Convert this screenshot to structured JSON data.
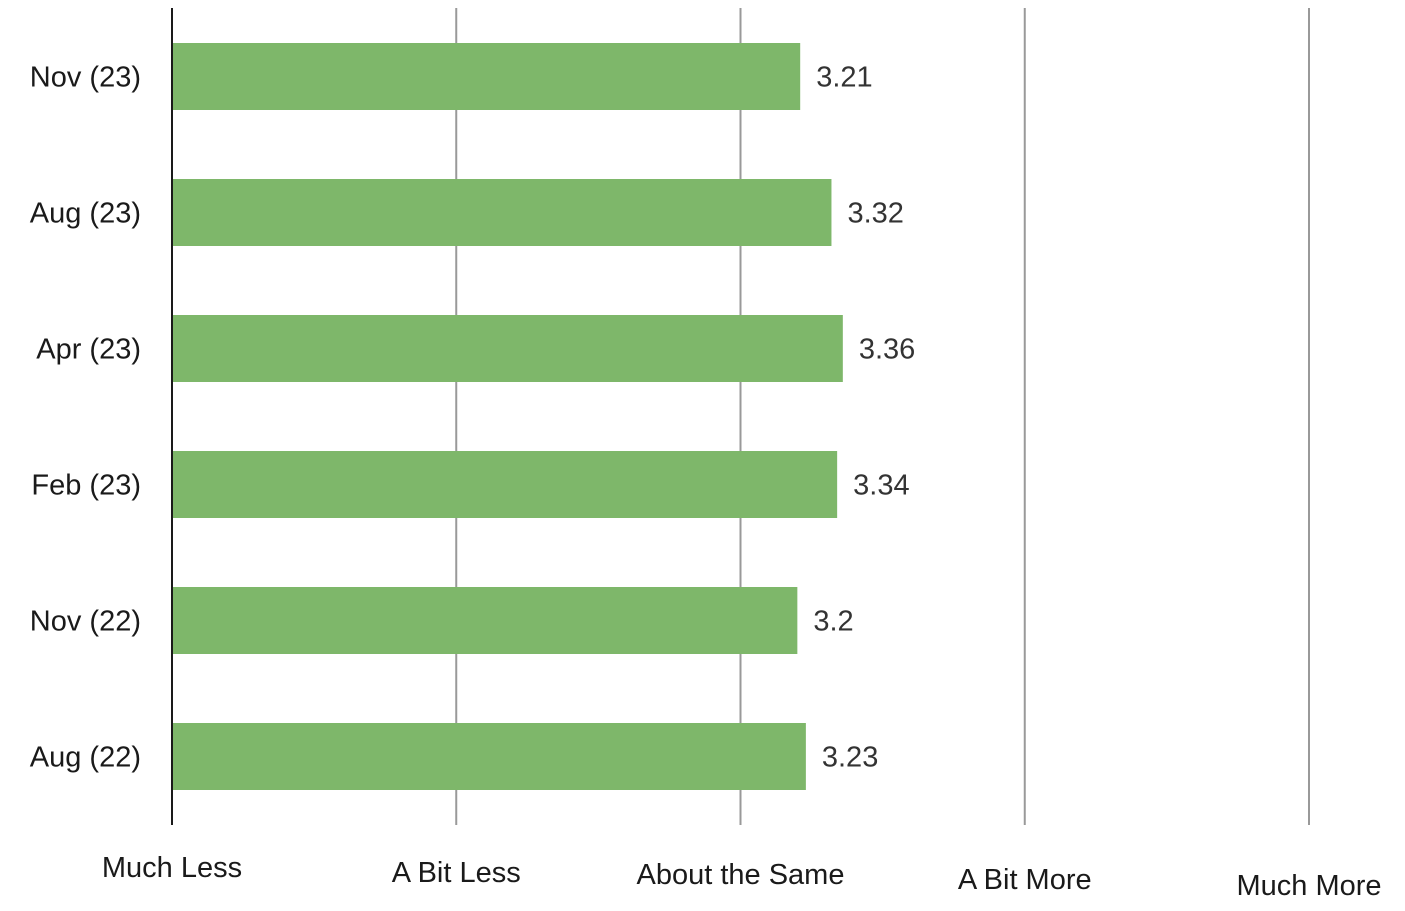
{
  "chart_data": {
    "type": "bar",
    "orientation": "horizontal",
    "categories": [
      "Nov (23)",
      "Aug (23)",
      "Apr (23)",
      "Feb (23)",
      "Nov (22)",
      "Aug (22)"
    ],
    "values": [
      3.21,
      3.32,
      3.36,
      3.34,
      3.2,
      3.23
    ],
    "data_labels": [
      "3.21",
      "3.32",
      "3.36",
      "3.34",
      "3.2",
      "3.23"
    ],
    "x_ticks": [
      {
        "value": 1,
        "label": "Much Less"
      },
      {
        "value": 2,
        "label": "A Bit Less"
      },
      {
        "value": 3,
        "label": "About the Same"
      },
      {
        "value": 4,
        "label": "A Bit More"
      },
      {
        "value": 5,
        "label": "Much More"
      }
    ],
    "xlim": [
      1,
      5
    ],
    "grid": true,
    "legend": "none",
    "bar_color": "#7eb76a",
    "grid_color": "#999999",
    "axis_color": "#1a1a1a"
  }
}
